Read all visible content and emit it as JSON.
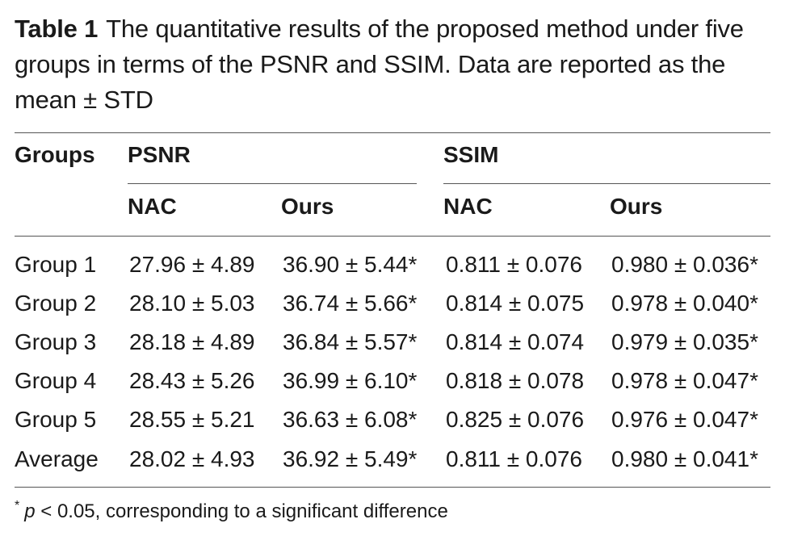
{
  "caption": {
    "label": "Table 1",
    "text": "The quantitative results of the proposed method under five groups in terms of the PSNR and SSIM. Data are reported as the mean ± STD"
  },
  "table": {
    "header_groups": "Groups",
    "header_psnr": "PSNR",
    "header_ssim": "SSIM",
    "sub_psnr_nac": "NAC",
    "sub_psnr_ours": "Ours",
    "sub_ssim_nac": "NAC",
    "sub_ssim_ours": "Ours",
    "rows": [
      {
        "group": "Group 1",
        "psnr_nac": "27.96 ± 4.89",
        "psnr_ours": "36.90 ± 5.44*",
        "ssim_nac": "0.811 ± 0.076",
        "ssim_ours": "0.980 ± 0.036*"
      },
      {
        "group": "Group 2",
        "psnr_nac": "28.10 ± 5.03",
        "psnr_ours": "36.74 ± 5.66*",
        "ssim_nac": "0.814 ± 0.075",
        "ssim_ours": "0.978 ± 0.040*"
      },
      {
        "group": "Group 3",
        "psnr_nac": "28.18 ± 4.89",
        "psnr_ours": "36.84 ± 5.57*",
        "ssim_nac": "0.814 ± 0.074",
        "ssim_ours": "0.979 ± 0.035*"
      },
      {
        "group": "Group 4",
        "psnr_nac": "28.43 ± 5.26",
        "psnr_ours": "36.99 ± 6.10*",
        "ssim_nac": "0.818 ± 0.078",
        "ssim_ours": "0.978 ± 0.047*"
      },
      {
        "group": "Group 5",
        "psnr_nac": "28.55 ± 5.21",
        "psnr_ours": "36.63 ± 6.08*",
        "ssim_nac": "0.825 ± 0.076",
        "ssim_ours": "0.976 ± 0.047*"
      },
      {
        "group": "Average",
        "psnr_nac": "28.02 ± 4.93",
        "psnr_ours": "36.92 ± 5.49*",
        "ssim_nac": "0.811 ± 0.076",
        "ssim_ours": "0.980 ± 0.041*"
      }
    ]
  },
  "footnote": {
    "marker": "*",
    "p_symbol": "p",
    "text": " < 0.05, corresponding to a significant difference"
  }
}
